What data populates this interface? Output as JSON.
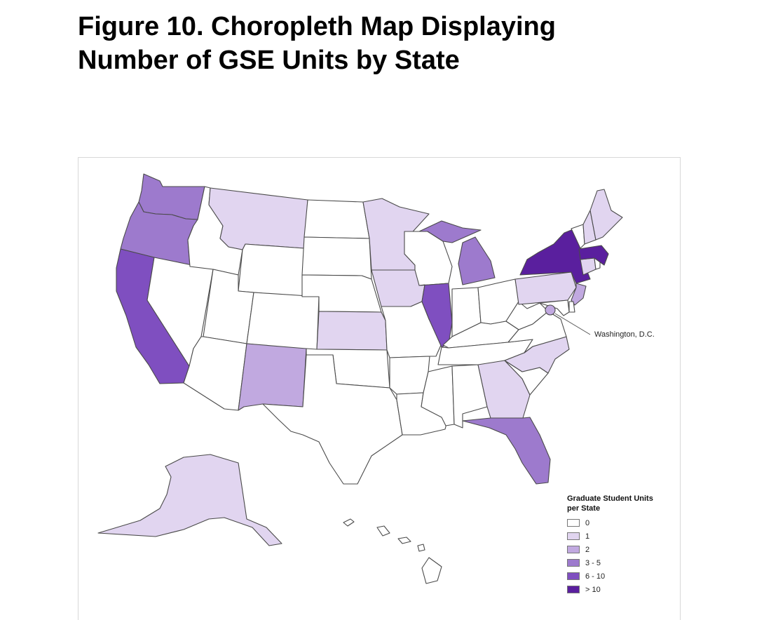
{
  "title": {
    "line1": "Figure 10. Choropleth Map Displaying",
    "line2": "Number of GSE Units by State"
  },
  "dc_label": "Washington, D.C.",
  "legend": {
    "title_line1": "Graduate Student Units",
    "title_line2": "per State",
    "items": [
      {
        "label": "0",
        "color": "#ffffff"
      },
      {
        "label": "1",
        "color": "#e1d5f0"
      },
      {
        "label": "2",
        "color": "#c1a9e0"
      },
      {
        "label": "3 - 5",
        "color": "#9d7acd"
      },
      {
        "label": "6 - 10",
        "color": "#7f4fc0"
      },
      {
        "label": "> 10",
        "color": "#5a1f9e"
      }
    ]
  },
  "state_categories": {
    "WA": "3 - 5",
    "OR": "3 - 5",
    "CA": "6 - 10",
    "NV": "0",
    "ID": "0",
    "MT": "1",
    "WY": "0",
    "UT": "0",
    "CO": "0",
    "AZ": "0",
    "NM": "2",
    "ND": "0",
    "SD": "0",
    "NE": "0",
    "KS": "1",
    "OK": "0",
    "TX": "0",
    "MN": "1",
    "IA": "1",
    "MO": "0",
    "AR": "0",
    "LA": "0",
    "WI": "0",
    "IL": "6 - 10",
    "MI": "3 - 5",
    "IN": "0",
    "OH": "0",
    "KY": "0",
    "TN": "0",
    "MS": "0",
    "AL": "0",
    "GA": "1",
    "FL": "3 - 5",
    "SC": "0",
    "NC": "1",
    "VA": "0",
    "WV": "0",
    "PA": "1",
    "NY": "> 10",
    "NJ": "2",
    "DE": "0",
    "MD": "0",
    "DC": "2",
    "CT": "1",
    "RI": "0",
    "MA": "> 10",
    "VT": "0",
    "NH": "1",
    "ME": "1",
    "AK": "1",
    "HI": "0"
  }
}
